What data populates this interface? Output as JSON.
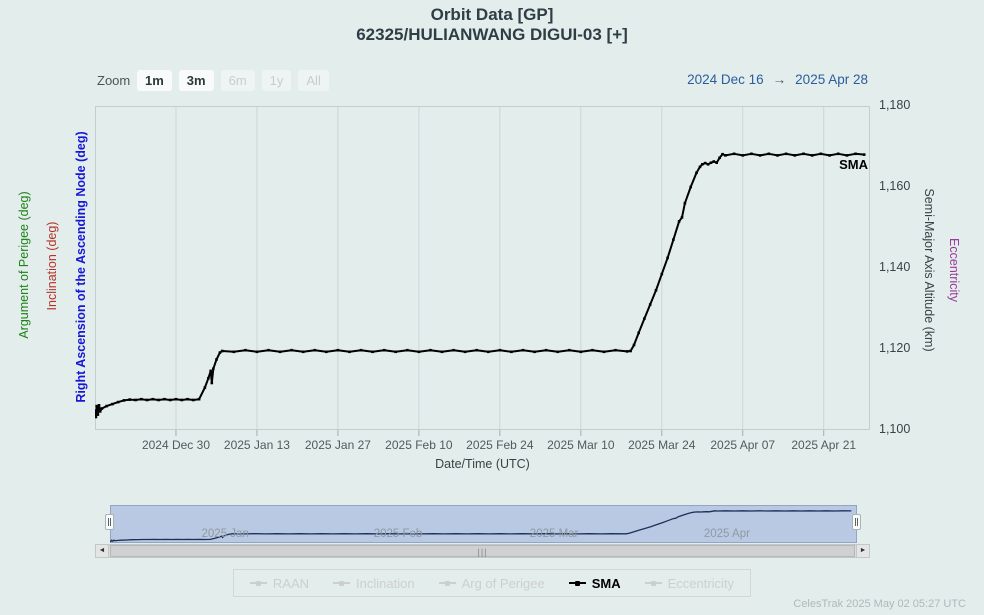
{
  "header": {
    "title": "Orbit Data [GP]",
    "subtitle": "62325/HULIANWANG DIGUI-03 [+]"
  },
  "toolbar": {
    "zoom_label": "Zoom",
    "zoom_buttons": [
      {
        "label": "1m",
        "enabled": true
      },
      {
        "label": "3m",
        "enabled": true
      },
      {
        "label": "6m",
        "enabled": false
      },
      {
        "label": "1y",
        "enabled": false
      },
      {
        "label": "All",
        "enabled": false
      }
    ],
    "range_from": "2024 Dec 16",
    "range_arrow": "→",
    "range_to": "2025 Apr 28"
  },
  "axes": {
    "x": {
      "title": "Date/Time (UTC)",
      "ticks": [
        {
          "label": "2024 Dec 30",
          "day": 14
        },
        {
          "label": "2025 Jan 13",
          "day": 28
        },
        {
          "label": "2025 Jan 27",
          "day": 42
        },
        {
          "label": "2025 Feb 10",
          "day": 56
        },
        {
          "label": "2025 Feb 24",
          "day": 70
        },
        {
          "label": "2025 Mar 10",
          "day": 84
        },
        {
          "label": "2025 Mar 24",
          "day": 98
        },
        {
          "label": "2025 Apr 07",
          "day": 112
        },
        {
          "label": "2025 Apr 21",
          "day": 126
        }
      ]
    },
    "y_right": {
      "title": "Semi-Major Axis Altitude (km)",
      "secondary_title": "Eccentricity",
      "ticks": [
        {
          "label": "1,180",
          "value": 1180
        },
        {
          "label": "1,160",
          "value": 1160
        },
        {
          "label": "1,140",
          "value": 1140
        },
        {
          "label": "1,120",
          "value": 1120
        },
        {
          "label": "1,100",
          "value": 1100
        }
      ]
    },
    "y_left_titles": [
      {
        "label": "Argument of Perigee (deg)",
        "color": "#1e8218"
      },
      {
        "label": "Inclination (deg)",
        "color": "#b63226"
      },
      {
        "label": "Right Ascension of the Ascending Node (deg)",
        "color": "#1616d6"
      }
    ]
  },
  "series_label": "SMA",
  "chart_data": {
    "type": "line",
    "title": "Orbit Data [GP]",
    "subtitle": "62325/HULIANWANG DIGUI-03 [+]",
    "xlabel": "Date/Time (UTC)",
    "ylabel": "Semi-Major Axis Altitude (km)",
    "x_epoch": "2024 Dec 16",
    "x_domain_days": [
      0,
      134
    ],
    "ylim": [
      1100,
      1180
    ],
    "x_tick_labels": [
      "2024 Dec 30",
      "2025 Jan 13",
      "2025 Jan 27",
      "2025 Feb 10",
      "2025 Feb 24",
      "2025 Mar 10",
      "2025 Mar 24",
      "2025 Apr 07",
      "2025 Apr 21"
    ],
    "grid": "vertical-only",
    "legend_position": "bottom",
    "series": [
      {
        "name": "SMA",
        "color": "#000000",
        "points": [
          [
            0,
            1104.8
          ],
          [
            0.15,
            1103.2
          ],
          [
            0.3,
            1105.9
          ],
          [
            0.5,
            1103.8
          ],
          [
            0.7,
            1106.1
          ],
          [
            0.9,
            1104.6
          ],
          [
            1.2,
            1105.3
          ],
          [
            2,
            1105.9
          ],
          [
            3,
            1106.4
          ],
          [
            4,
            1106.9
          ],
          [
            5,
            1107.3
          ],
          [
            6,
            1107.5
          ],
          [
            7,
            1107.4
          ],
          [
            8,
            1107.6
          ],
          [
            9,
            1107.4
          ],
          [
            10,
            1107.6
          ],
          [
            11,
            1107.4
          ],
          [
            12,
            1107.6
          ],
          [
            13,
            1107.4
          ],
          [
            14,
            1107.6
          ],
          [
            15,
            1107.4
          ],
          [
            16,
            1107.6
          ],
          [
            17,
            1107.4
          ],
          [
            18,
            1107.6
          ],
          [
            19,
            1110.5
          ],
          [
            19.6,
            1112.8
          ],
          [
            20,
            1114.6
          ],
          [
            20.2,
            1111.6
          ],
          [
            20.45,
            1115.1
          ],
          [
            21,
            1117.4
          ],
          [
            21.6,
            1119.1
          ],
          [
            22,
            1119.5
          ],
          [
            24,
            1119.3
          ],
          [
            26,
            1119.7
          ],
          [
            28,
            1119.3
          ],
          [
            30,
            1119.7
          ],
          [
            32,
            1119.3
          ],
          [
            34,
            1119.7
          ],
          [
            36,
            1119.3
          ],
          [
            38,
            1119.7
          ],
          [
            40,
            1119.3
          ],
          [
            42,
            1119.7
          ],
          [
            44,
            1119.3
          ],
          [
            46,
            1119.7
          ],
          [
            48,
            1119.3
          ],
          [
            50,
            1119.7
          ],
          [
            52,
            1119.3
          ],
          [
            54,
            1119.7
          ],
          [
            56,
            1119.3
          ],
          [
            58,
            1119.7
          ],
          [
            60,
            1119.3
          ],
          [
            62,
            1119.7
          ],
          [
            64,
            1119.3
          ],
          [
            66,
            1119.7
          ],
          [
            68,
            1119.3
          ],
          [
            70,
            1119.7
          ],
          [
            72,
            1119.3
          ],
          [
            74,
            1119.7
          ],
          [
            76,
            1119.3
          ],
          [
            78,
            1119.7
          ],
          [
            80,
            1119.3
          ],
          [
            82,
            1119.7
          ],
          [
            84,
            1119.3
          ],
          [
            86,
            1119.7
          ],
          [
            88,
            1119.3
          ],
          [
            90,
            1119.7
          ],
          [
            92,
            1119.4
          ],
          [
            92.6,
            1119.5
          ],
          [
            93.2,
            1121
          ],
          [
            94,
            1124
          ],
          [
            95,
            1127.5
          ],
          [
            96,
            1131
          ],
          [
            97,
            1134.5
          ],
          [
            98,
            1138.5
          ],
          [
            99,
            1142.5
          ],
          [
            100,
            1147
          ],
          [
            101,
            1151.5
          ],
          [
            101.5,
            1152.5
          ],
          [
            102,
            1156
          ],
          [
            103,
            1160
          ],
          [
            104,
            1163.5
          ],
          [
            104.6,
            1165
          ],
          [
            105,
            1165.6
          ],
          [
            105.5,
            1165.9
          ],
          [
            106,
            1165.6
          ],
          [
            106.5,
            1166
          ],
          [
            107,
            1166.3
          ],
          [
            107.5,
            1166
          ],
          [
            108,
            1167.2
          ],
          [
            108.5,
            1168.1
          ],
          [
            109,
            1167.8
          ],
          [
            110.5,
            1168.2
          ],
          [
            112,
            1167.8
          ],
          [
            113.5,
            1168.2
          ],
          [
            115,
            1167.8
          ],
          [
            116.5,
            1168.2
          ],
          [
            118,
            1167.8
          ],
          [
            119.5,
            1168.2
          ],
          [
            121,
            1167.8
          ],
          [
            122.5,
            1168.2
          ],
          [
            124,
            1167.8
          ],
          [
            125.5,
            1168.2
          ],
          [
            127,
            1167.8
          ],
          [
            128.5,
            1168.2
          ],
          [
            130,
            1167.8
          ],
          [
            131.5,
            1168.2
          ],
          [
            133,
            1168.0
          ]
        ]
      }
    ]
  },
  "navigator": {
    "month_ticks": [
      {
        "label": "2025 Jan",
        "day": 16
      },
      {
        "label": "2025 Feb",
        "day": 47
      },
      {
        "label": "2025 Mar",
        "day": 75
      },
      {
        "label": "2025 Apr",
        "day": 106
      }
    ]
  },
  "scrollbar": {
    "left_arrow": "◄",
    "right_arrow": "►",
    "grip": "|||"
  },
  "legend": {
    "items": [
      {
        "label": "RAAN",
        "enabled": false
      },
      {
        "label": "Inclination",
        "enabled": false
      },
      {
        "label": "Arg of Perigee",
        "enabled": false
      },
      {
        "label": "SMA",
        "enabled": true
      },
      {
        "label": "Eccentricity",
        "enabled": false
      }
    ]
  },
  "footer": {
    "credit": "CelesTrak 2025 May 02 05:27 UTC"
  },
  "colors": {
    "background": "#e3edec",
    "grid": "#cbd7d5",
    "plot_border": "#c2cfcd",
    "series_sma": "#000000",
    "range_text": "#2b5d9d",
    "eccentricity": "#9c3a9c",
    "navigator_fill": "#bac9e3",
    "navigator_line": "#1b3058",
    "disabled_legend": "#cccfcf"
  }
}
